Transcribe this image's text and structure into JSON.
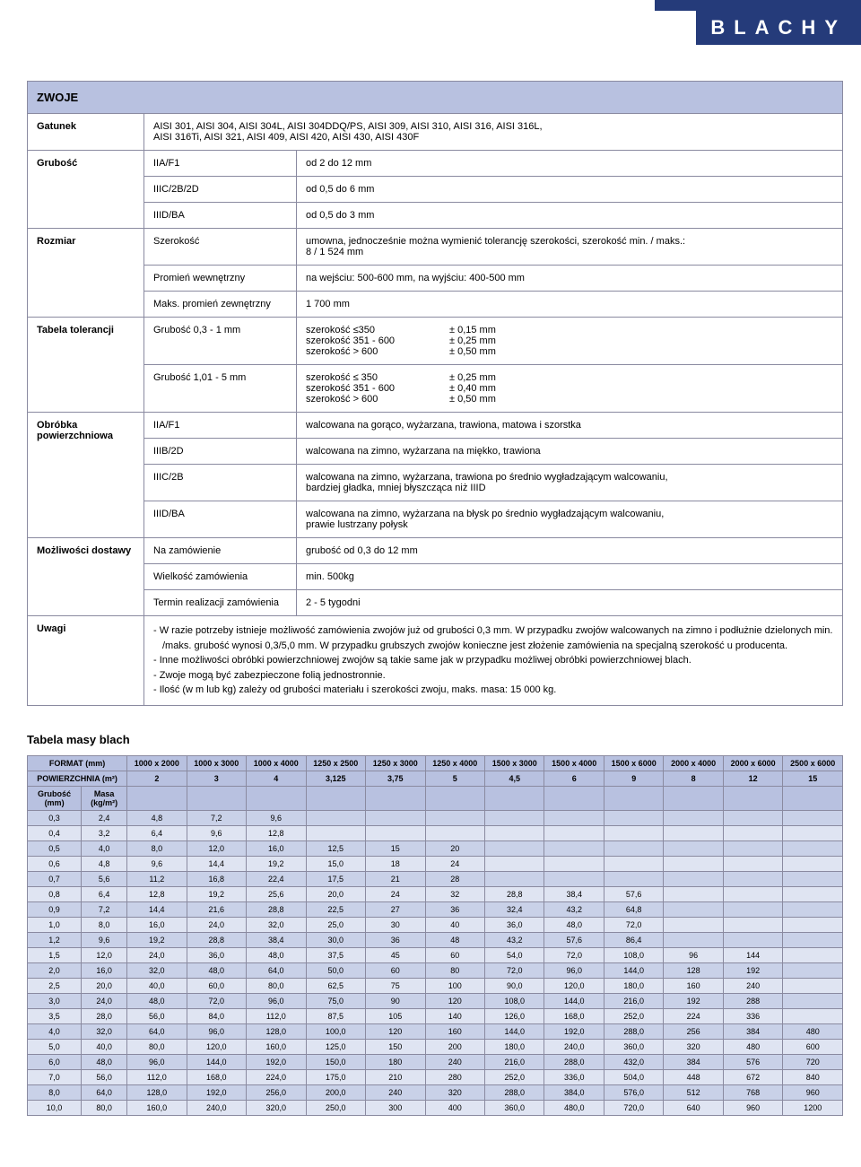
{
  "header": {
    "badge": "BLACHY"
  },
  "zwoje": {
    "title": "ZWOJE",
    "gatunek_label": "Gatunek",
    "gatunek_value": "AISI 301, AISI 304, AISI 304L, AISI 304DDQ/PS, AISI 309, AISI 310, AISI 316, AISI 316L,\nAISI 316Ti, AISI 321, AISI 409, AISI 420, AISI 430, AISI 430F",
    "grubosc_label": "Grubość",
    "grubosc_rows": [
      {
        "k": "IIA/F1",
        "v": "od 2 do 12 mm"
      },
      {
        "k": "IIIC/2B/2D",
        "v": "od 0,5 do 6 mm"
      },
      {
        "k": "IIID/BA",
        "v": "od 0,5 do 3 mm"
      }
    ],
    "rozmiar_label": "Rozmiar",
    "rozmiar_rows": [
      {
        "k": "Szerokość",
        "v": "umowna, jednocześnie można wymienić tolerancję szerokości, szerokość min. / maks.:\n8 / 1 524 mm"
      },
      {
        "k": "Promień wewnętrzny",
        "v": "na wejściu: 500-600 mm, na wyjściu: 400-500 mm"
      },
      {
        "k": "Maks. promień zewnętrzny",
        "v": "1 700 mm"
      }
    ],
    "tolerancji_label": "Tabela tolerancji",
    "tolerancji_rows": [
      {
        "k": "Grubość 0,3 - 1 mm",
        "r1a": "szerokość ≤350",
        "r1b": "± 0,15 mm",
        "r2a": "szerokość 351 - 600",
        "r2b": "± 0,25 mm",
        "r3a": "szerokość > 600",
        "r3b": "± 0,50 mm"
      },
      {
        "k": "Grubość 1,01 - 5 mm",
        "r1a": "szerokość ≤ 350",
        "r1b": "± 0,25 mm",
        "r2a": "szerokość 351 - 600",
        "r2b": "± 0,40 mm",
        "r3a": "szerokość > 600",
        "r3b": "± 0,50 mm"
      }
    ],
    "obrobka_label": "Obróbka powierzchniowa",
    "obrobka_rows": [
      {
        "k": "IIA/F1",
        "v": "walcowana na gorąco, wyżarzana, trawiona, matowa i szorstka"
      },
      {
        "k": "IIIB/2D",
        "v": "walcowana na zimno, wyżarzana na miękko, trawiona"
      },
      {
        "k": "IIIC/2B",
        "v": "walcowana na zimno, wyżarzana, trawiona po średnio wygładzającym walcowaniu,\nbardziej gładka, mniej błyszcząca niż IIID"
      },
      {
        "k": "IIID/BA",
        "v": "walcowana na zimno, wyżarzana na błysk po średnio wygładzającym walcowaniu,\nprawie lustrzany połysk"
      }
    ],
    "mozliwosci_label": "Możliwości dostawy",
    "mozliwosci_rows": [
      {
        "k": "Na zamówienie",
        "v": "grubość od 0,3 do 12 mm"
      },
      {
        "k": "Wielkość zamówienia",
        "v": "min. 500kg"
      },
      {
        "k": "Termin realizacji zamówienia",
        "v": "2 - 5 tygodni"
      }
    ],
    "uwagi_label": "Uwagi",
    "uwagi_items": [
      "- W razie potrzeby istnieje możliwość zamówienia zwojów już od grubości 0,3 mm. W przypadku zwojów walcowanych na zimno i podłużnie dzielonych min. /maks. grubość wynosi 0,3/5,0 mm. W przypadku grubszych zwojów konieczne jest złożenie zamówienia na specjalną szerokość u producenta.",
      "- Inne możliwości obróbki powierzchniowej zwojów są takie same jak w przypadku możliwej obróbki powierzchniowej blach.",
      "- Zwoje mogą być zabezpieczone folią jednostronnie.",
      "- Ilość (w m lub kg) zależy od grubości materiału i szerokości zwoju, maks. masa: 15 000 kg."
    ]
  },
  "mass_table": {
    "heading": "Tabela masy blach",
    "format_label": "FORMAT (mm)",
    "pow_label": "POWIERZCHNIA (m²)",
    "grubosc_label": "Grubość\n(mm)",
    "masa_label": "Masa\n(kg/m²)",
    "formats": [
      "1000 x 2000",
      "1000 x 3000",
      "1000 x 4000",
      "1250 x 2500",
      "1250 x 3000",
      "1250 x 4000",
      "1500 x 3000",
      "1500 x 4000",
      "1500 x 6000",
      "2000 x 4000",
      "2000 x 6000",
      "2500 x 6000"
    ],
    "areas": [
      "2",
      "3",
      "4",
      "3,125",
      "3,75",
      "5",
      "4,5",
      "6",
      "9",
      "8",
      "12",
      "15"
    ],
    "rows": [
      {
        "g": "0,3",
        "m": "2,4",
        "v": [
          "4,8",
          "7,2",
          "9,6",
          "",
          "",
          "",
          "",
          "",
          "",
          "",
          "",
          ""
        ]
      },
      {
        "g": "0,4",
        "m": "3,2",
        "v": [
          "6,4",
          "9,6",
          "12,8",
          "",
          "",
          "",
          "",
          "",
          "",
          "",
          "",
          ""
        ]
      },
      {
        "g": "0,5",
        "m": "4,0",
        "v": [
          "8,0",
          "12,0",
          "16,0",
          "12,5",
          "15",
          "20",
          "",
          "",
          "",
          "",
          "",
          ""
        ]
      },
      {
        "g": "0,6",
        "m": "4,8",
        "v": [
          "9,6",
          "14,4",
          "19,2",
          "15,0",
          "18",
          "24",
          "",
          "",
          "",
          "",
          "",
          ""
        ]
      },
      {
        "g": "0,7",
        "m": "5,6",
        "v": [
          "11,2",
          "16,8",
          "22,4",
          "17,5",
          "21",
          "28",
          "",
          "",
          "",
          "",
          "",
          ""
        ]
      },
      {
        "g": "0,8",
        "m": "6,4",
        "v": [
          "12,8",
          "19,2",
          "25,6",
          "20,0",
          "24",
          "32",
          "28,8",
          "38,4",
          "57,6",
          "",
          "",
          ""
        ]
      },
      {
        "g": "0,9",
        "m": "7,2",
        "v": [
          "14,4",
          "21,6",
          "28,8",
          "22,5",
          "27",
          "36",
          "32,4",
          "43,2",
          "64,8",
          "",
          "",
          ""
        ]
      },
      {
        "g": "1,0",
        "m": "8,0",
        "v": [
          "16,0",
          "24,0",
          "32,0",
          "25,0",
          "30",
          "40",
          "36,0",
          "48,0",
          "72,0",
          "",
          "",
          ""
        ]
      },
      {
        "g": "1,2",
        "m": "9,6",
        "v": [
          "19,2",
          "28,8",
          "38,4",
          "30,0",
          "36",
          "48",
          "43,2",
          "57,6",
          "86,4",
          "",
          "",
          ""
        ]
      },
      {
        "g": "1,5",
        "m": "12,0",
        "v": [
          "24,0",
          "36,0",
          "48,0",
          "37,5",
          "45",
          "60",
          "54,0",
          "72,0",
          "108,0",
          "96",
          "144",
          ""
        ]
      },
      {
        "g": "2,0",
        "m": "16,0",
        "v": [
          "32,0",
          "48,0",
          "64,0",
          "50,0",
          "60",
          "80",
          "72,0",
          "96,0",
          "144,0",
          "128",
          "192",
          ""
        ]
      },
      {
        "g": "2,5",
        "m": "20,0",
        "v": [
          "40,0",
          "60,0",
          "80,0",
          "62,5",
          "75",
          "100",
          "90,0",
          "120,0",
          "180,0",
          "160",
          "240",
          ""
        ]
      },
      {
        "g": "3,0",
        "m": "24,0",
        "v": [
          "48,0",
          "72,0",
          "96,0",
          "75,0",
          "90",
          "120",
          "108,0",
          "144,0",
          "216,0",
          "192",
          "288",
          ""
        ]
      },
      {
        "g": "3,5",
        "m": "28,0",
        "v": [
          "56,0",
          "84,0",
          "112,0",
          "87,5",
          "105",
          "140",
          "126,0",
          "168,0",
          "252,0",
          "224",
          "336",
          ""
        ]
      },
      {
        "g": "4,0",
        "m": "32,0",
        "v": [
          "64,0",
          "96,0",
          "128,0",
          "100,0",
          "120",
          "160",
          "144,0",
          "192,0",
          "288,0",
          "256",
          "384",
          "480"
        ]
      },
      {
        "g": "5,0",
        "m": "40,0",
        "v": [
          "80,0",
          "120,0",
          "160,0",
          "125,0",
          "150",
          "200",
          "180,0",
          "240,0",
          "360,0",
          "320",
          "480",
          "600"
        ]
      },
      {
        "g": "6,0",
        "m": "48,0",
        "v": [
          "96,0",
          "144,0",
          "192,0",
          "150,0",
          "180",
          "240",
          "216,0",
          "288,0",
          "432,0",
          "384",
          "576",
          "720"
        ]
      },
      {
        "g": "7,0",
        "m": "56,0",
        "v": [
          "112,0",
          "168,0",
          "224,0",
          "175,0",
          "210",
          "280",
          "252,0",
          "336,0",
          "504,0",
          "448",
          "672",
          "840"
        ]
      },
      {
        "g": "8,0",
        "m": "64,0",
        "v": [
          "128,0",
          "192,0",
          "256,0",
          "200,0",
          "240",
          "320",
          "288,0",
          "384,0",
          "576,0",
          "512",
          "768",
          "960"
        ]
      },
      {
        "g": "10,0",
        "m": "80,0",
        "v": [
          "160,0",
          "240,0",
          "320,0",
          "250,0",
          "300",
          "400",
          "360,0",
          "480,0",
          "720,0",
          "640",
          "960",
          "1200"
        ]
      }
    ]
  },
  "colors": {
    "brand_dark": "#253b7a",
    "head_bg": "#b8c1e0",
    "row_alt1": "#c9d1e8",
    "row_alt2": "#dfe4f2",
    "border": "#8a8aa0"
  }
}
